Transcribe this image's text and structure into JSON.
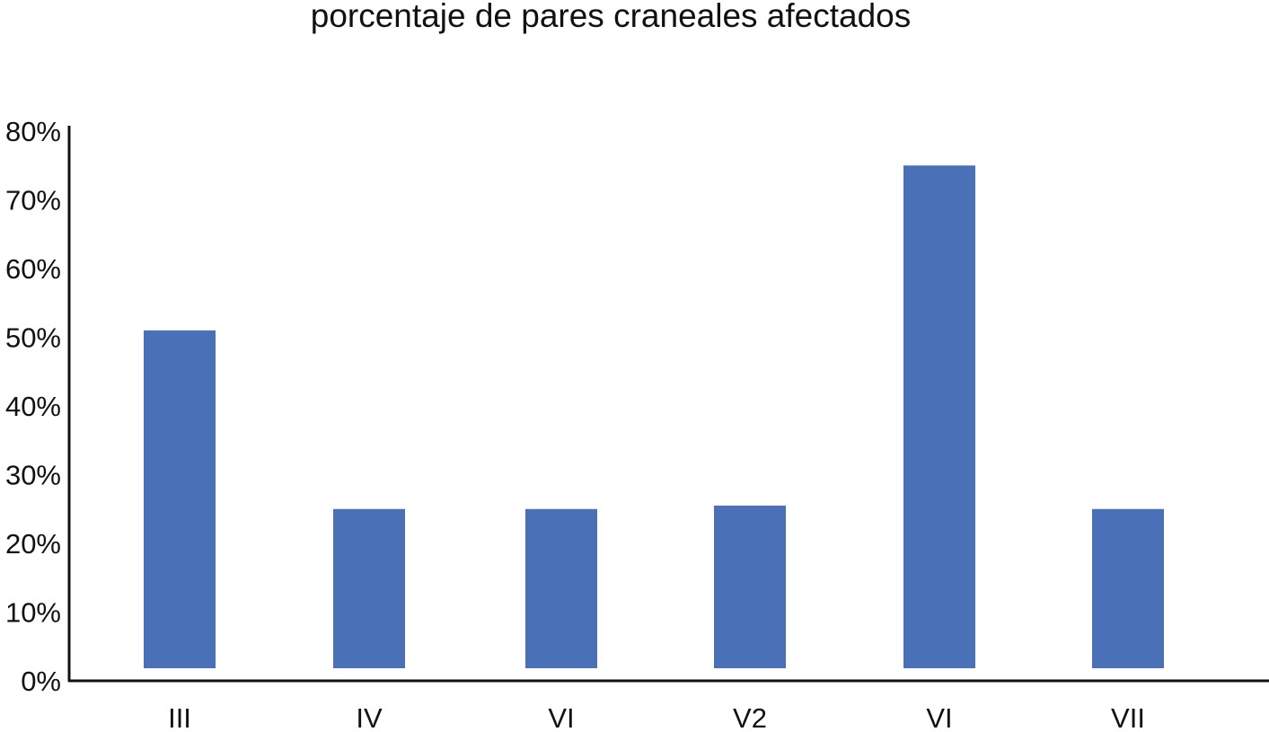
{
  "chart_data": {
    "type": "bar",
    "title": "porcentaje de pares craneales afectados",
    "xlabel": "",
    "ylabel": "",
    "categories": [
      "III",
      "IV",
      "VI",
      "V2",
      "VI",
      "VII"
    ],
    "values": [
      51,
      25,
      25,
      25.5,
      75,
      25
    ],
    "ylim": [
      0,
      80
    ],
    "ytick_labels": [
      "0%",
      "10%",
      "20%",
      "30%",
      "40%",
      "50%",
      "60%",
      "70%",
      "80%"
    ],
    "grid": false,
    "legend": "none",
    "bar_color": "#4a71b7",
    "axis_color": "#111111"
  }
}
